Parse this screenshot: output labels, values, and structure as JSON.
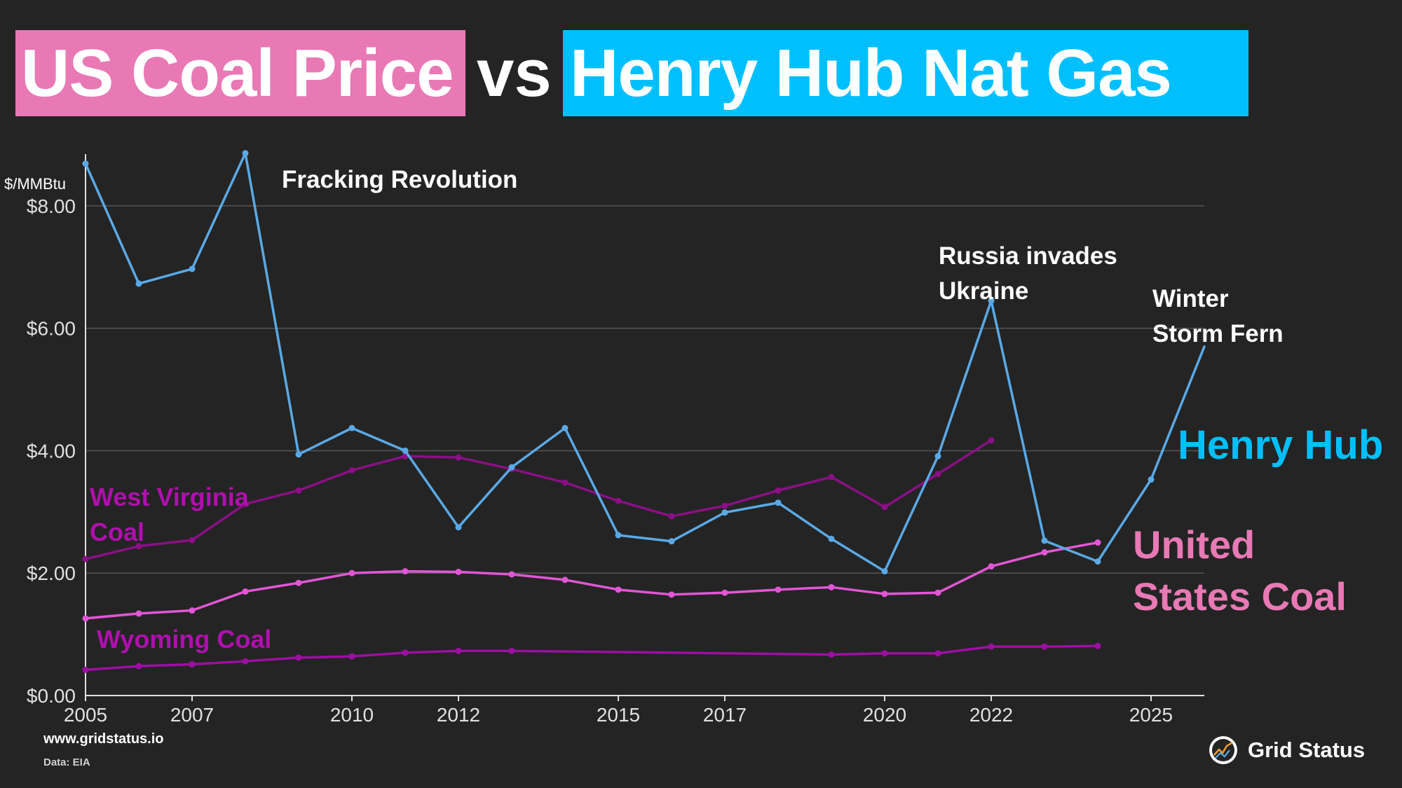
{
  "title": {
    "left": "US Coal Price",
    "middle": "vs",
    "right": "Henry Hub Nat Gas"
  },
  "colors": {
    "background": "#242424",
    "coal_title_bg": "#e879b4",
    "gas_title_bg": "#00bfff",
    "henry_hub": "#5aa9e6",
    "us_coal": "#e256d6",
    "west_virginia": "#8b0f86",
    "wyoming": "#9e0ea3",
    "henry_hub_label": "#00bfff",
    "us_coal_label": "#e879b4",
    "wv_label": "#b00fae",
    "wy_label": "#b00fae",
    "grid": "#555555",
    "axis": "#e0e0e0"
  },
  "chart_data": {
    "type": "line",
    "ylabel": "$/MMBtu",
    "xlim": [
      2005,
      2026
    ],
    "ylim": [
      0,
      8.8
    ],
    "x_ticks": [
      2005,
      2007,
      2010,
      2012,
      2015,
      2017,
      2020,
      2022,
      2025
    ],
    "y_ticks": [
      {
        "value": 0,
        "label": "$0.00"
      },
      {
        "value": 2,
        "label": "$2.00"
      },
      {
        "value": 4,
        "label": "$4.00"
      },
      {
        "value": 6,
        "label": "$6.00"
      },
      {
        "value": 8,
        "label": "$8.00"
      }
    ],
    "grid": "horizontal",
    "series": [
      {
        "name": "Henry Hub",
        "key": "henry_hub",
        "x": [
          2005,
          2006,
          2007,
          2008,
          2009,
          2010,
          2011,
          2012,
          2013,
          2014,
          2015,
          2016,
          2017,
          2018,
          2019,
          2020,
          2021,
          2022,
          2023,
          2024,
          2025,
          2026
        ],
        "values": [
          8.69,
          6.73,
          6.97,
          8.86,
          3.94,
          4.37,
          4.0,
          2.75,
          3.73,
          4.37,
          2.62,
          2.52,
          2.99,
          3.15,
          2.56,
          2.03,
          3.91,
          6.45,
          2.53,
          2.19,
          3.53,
          5.7
        ]
      },
      {
        "name": "United States Coal",
        "key": "us_coal",
        "x": [
          2005,
          2006,
          2007,
          2008,
          2009,
          2010,
          2011,
          2012,
          2013,
          2014,
          2015,
          2016,
          2017,
          2018,
          2019,
          2020,
          2021,
          2022,
          2023,
          2024
        ],
        "values": [
          1.26,
          1.34,
          1.39,
          1.7,
          1.84,
          2.0,
          2.03,
          2.02,
          1.98,
          1.89,
          1.73,
          1.65,
          1.68,
          1.73,
          1.77,
          1.66,
          1.68,
          2.11,
          2.34,
          2.5
        ]
      },
      {
        "name": "West Virginia Coal",
        "key": "west_virginia",
        "x": [
          2005,
          2006,
          2007,
          2008,
          2009,
          2010,
          2011,
          2012,
          2013,
          2014,
          2015,
          2016,
          2017,
          2018,
          2019,
          2020,
          2021,
          2022
        ],
        "values": [
          2.23,
          2.44,
          2.54,
          3.13,
          3.35,
          3.68,
          3.91,
          3.89,
          3.7,
          3.48,
          3.18,
          2.93,
          3.1,
          3.35,
          3.57,
          3.08,
          3.62,
          4.17
        ]
      },
      {
        "name": "Wyoming Coal",
        "key": "wyoming",
        "x": [
          2005,
          2006,
          2007,
          2008,
          2009,
          2010,
          2011,
          2012,
          2013,
          2019,
          2020,
          2021,
          2022,
          2023,
          2024
        ],
        "values": [
          0.42,
          0.48,
          0.51,
          0.56,
          0.62,
          0.64,
          0.7,
          0.73,
          0.73,
          0.67,
          0.69,
          0.69,
          0.8,
          0.8,
          0.81
        ]
      }
    ],
    "annotations": [
      {
        "key": "fracking",
        "lines": [
          "Fracking Revolution"
        ]
      },
      {
        "key": "russia",
        "lines": [
          "Russia invades",
          "Ukraine"
        ]
      },
      {
        "key": "fern",
        "lines": [
          "Winter",
          "Storm Fern"
        ]
      }
    ],
    "series_labels": [
      {
        "key": "henry_hub",
        "lines": [
          "Henry Hub"
        ]
      },
      {
        "key": "us_coal",
        "lines": [
          "United",
          "States Coal"
        ]
      },
      {
        "key": "west_virginia",
        "lines": [
          "West Virginia",
          "Coal"
        ]
      },
      {
        "key": "wyoming",
        "lines": [
          "Wyoming Coal"
        ]
      }
    ]
  },
  "footer": {
    "site": "www.gridstatus.io",
    "source": "Data: EIA",
    "brand": "Grid Status"
  }
}
